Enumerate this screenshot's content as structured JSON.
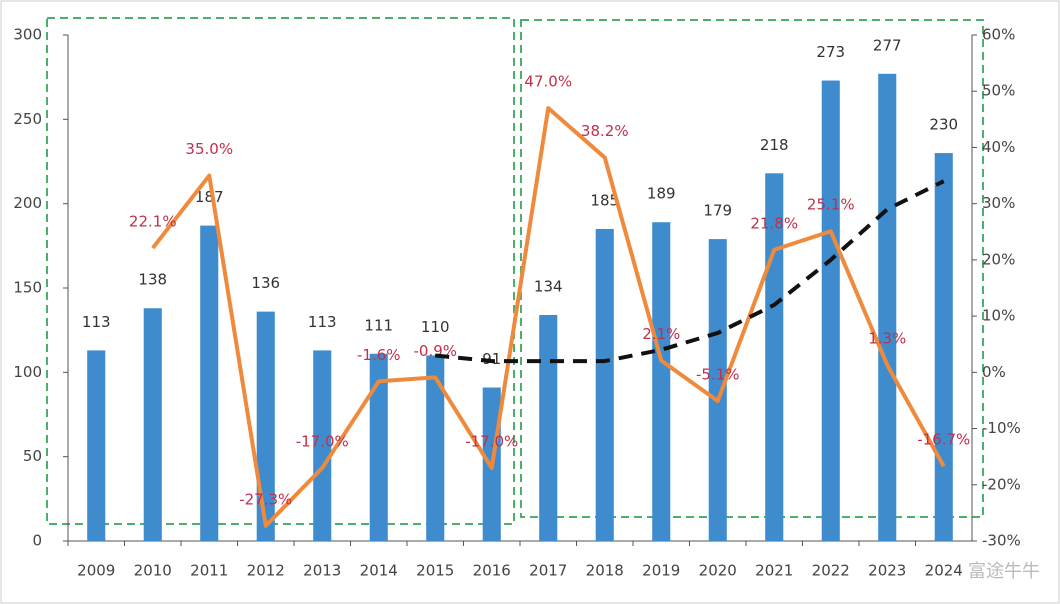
{
  "chart_data": {
    "type": "bar-line",
    "categories": [
      "2009",
      "2010",
      "2011",
      "2012",
      "2013",
      "2014",
      "2015",
      "2016",
      "2017",
      "2018",
      "2019",
      "2020",
      "2021",
      "2022",
      "2023",
      "2024"
    ],
    "series": [
      {
        "type": "bar",
        "color": "#3e8ccd",
        "values": [
          113,
          138,
          187,
          136,
          113,
          111,
          110,
          91,
          134,
          185,
          189,
          179,
          218,
          273,
          277,
          230
        ]
      },
      {
        "type": "line",
        "axis": "y2",
        "color": "#ef8a3c",
        "values": [
          null,
          22.1,
          35.0,
          -27.3,
          -17.0,
          -1.6,
          -0.9,
          -17.0,
          47.0,
          38.2,
          2.1,
          -5.1,
          21.8,
          25.1,
          1.3,
          -16.7
        ],
        "value_labels": [
          null,
          "22.1%",
          "35.0%",
          "-27.3%",
          "-17.0%",
          "-1.6%",
          "-0.9%",
          "-17.0%",
          "47.0%",
          "38.2%",
          "2.1%",
          "-5.1%",
          "21.8%",
          "25.1%",
          "1.3%",
          "-16.7%"
        ]
      },
      {
        "type": "dashed-line",
        "axis": "y2",
        "color": "#111111",
        "values": [
          null,
          null,
          null,
          null,
          null,
          null,
          3,
          2,
          2,
          2,
          4,
          7,
          12,
          20,
          29,
          34
        ]
      }
    ],
    "ylim": [
      0,
      300
    ],
    "yticks": [
      0,
      50,
      100,
      150,
      200,
      250,
      300
    ],
    "y2lim": [
      -30,
      60
    ],
    "y2ticks": [
      {
        "value": -30,
        "label": "-30%"
      },
      {
        "value": -20,
        "label": "-20%"
      },
      {
        "value": -10,
        "label": "-10%"
      },
      {
        "value": 0,
        "label": "0%"
      },
      {
        "value": 10,
        "label": "10%"
      },
      {
        "value": 20,
        "label": "20%"
      },
      {
        "value": 30,
        "label": "30%"
      },
      {
        "value": 40,
        "label": "40%"
      },
      {
        "value": 50,
        "label": "50%"
      },
      {
        "value": 60,
        "label": "60%"
      }
    ],
    "watermark": "富途牛牛"
  }
}
